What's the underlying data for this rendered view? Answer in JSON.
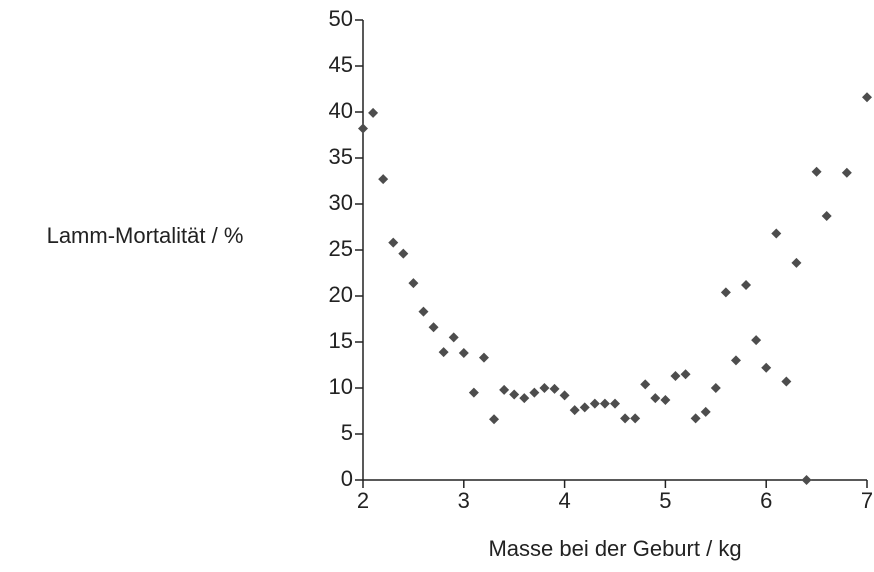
{
  "chart_data": {
    "type": "scatter",
    "xlabel": "Masse bei der Geburt / kg",
    "ylabel": "Lamm-Mortalität / %",
    "color": "#4d4d4d",
    "x": [
      2.0,
      2.1,
      2.2,
      2.3,
      2.4,
      2.5,
      2.6,
      2.7,
      2.8,
      2.9,
      3.0,
      3.1,
      3.2,
      3.3,
      3.4,
      3.5,
      3.6,
      3.7,
      3.8,
      3.9,
      4.0,
      4.1,
      4.2,
      4.3,
      4.4,
      4.5,
      4.6,
      4.7,
      4.8,
      4.9,
      5.0,
      5.1,
      5.2,
      5.3,
      5.4,
      5.5,
      5.6,
      5.7,
      5.8,
      5.9,
      6.0,
      6.1,
      6.2,
      6.3,
      6.4,
      6.5,
      6.6,
      6.8,
      7.0
    ],
    "values": [
      38.2,
      39.9,
      32.7,
      25.8,
      24.6,
      21.4,
      18.3,
      16.6,
      13.9,
      15.5,
      13.8,
      9.5,
      13.3,
      6.6,
      9.8,
      9.3,
      8.9,
      9.5,
      10.0,
      9.9,
      9.2,
      7.6,
      7.9,
      8.3,
      8.3,
      8.3,
      6.7,
      6.7,
      10.4,
      8.9,
      8.7,
      11.3,
      11.5,
      6.7,
      7.4,
      10.0,
      20.4,
      13.0,
      21.2,
      15.2,
      12.2,
      26.8,
      10.7,
      23.6,
      0,
      33.5,
      28.7,
      33.4,
      41.6
    ],
    "xlim": [
      2,
      7
    ],
    "xticks": [
      2,
      3,
      4,
      5,
      6,
      7
    ],
    "ylim": [
      0,
      50
    ],
    "yticks": [
      0,
      5,
      10,
      15,
      20,
      25,
      30,
      35,
      40,
      45,
      50
    ]
  }
}
